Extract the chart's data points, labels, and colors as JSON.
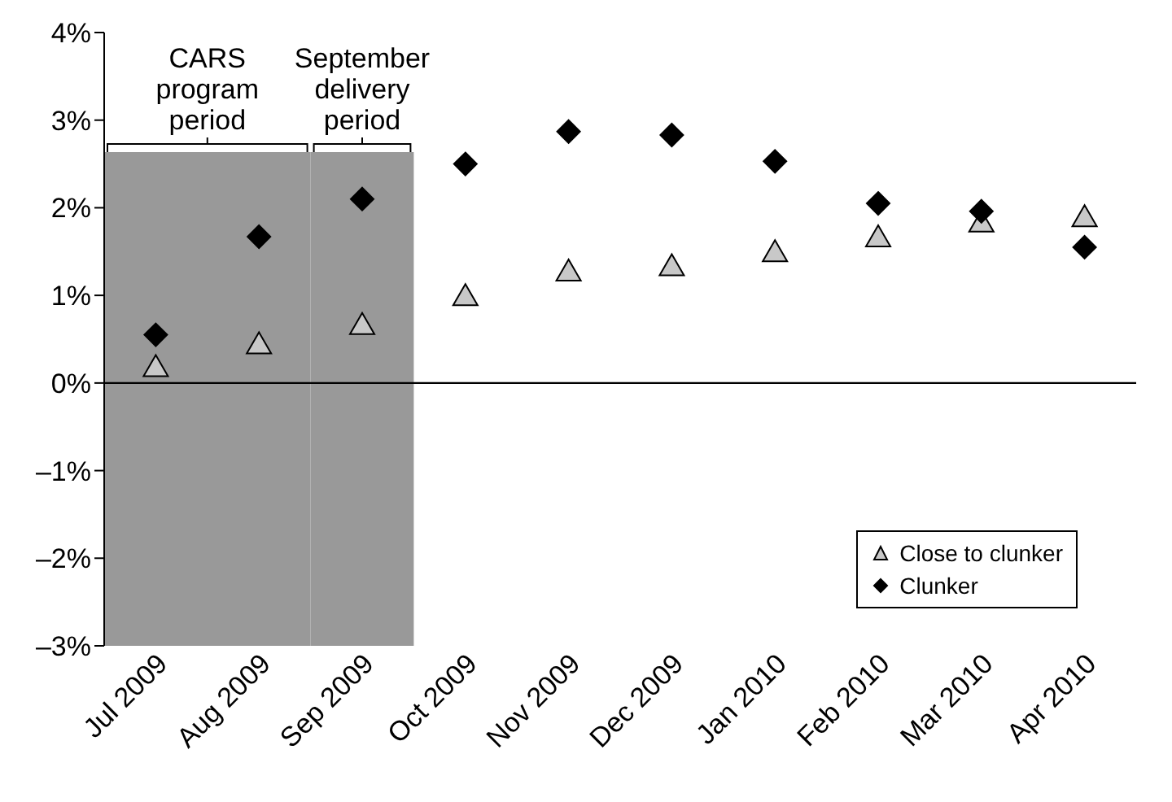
{
  "chart_data": {
    "type": "scatter",
    "categories": [
      "Jul 2009",
      "Aug 2009",
      "Sep 2009",
      "Oct 2009",
      "Nov 2009",
      "Dec 2009",
      "Jan 2010",
      "Feb 2010",
      "Mar 2010",
      "Apr 2010"
    ],
    "series": [
      {
        "name": "Close to clunker",
        "color": "#c8c8c8",
        "marker": "triangle",
        "values": [
          0.19,
          0.45,
          0.67,
          1.0,
          1.28,
          1.34,
          1.5,
          1.67,
          1.84,
          1.9
        ]
      },
      {
        "name": "Clunker",
        "color": "#000000",
        "marker": "diamond",
        "values": [
          0.55,
          1.67,
          2.1,
          2.5,
          2.87,
          2.83,
          2.53,
          2.05,
          1.96,
          1.55
        ]
      }
    ],
    "ylim": [
      -3,
      4
    ],
    "yticks": [
      {
        "value": -3,
        "label": "–3%"
      },
      {
        "value": -2,
        "label": "–2%"
      },
      {
        "value": -1,
        "label": "–1%"
      },
      {
        "value": 0,
        "label": "0%"
      },
      {
        "value": 1,
        "label": "1%"
      },
      {
        "value": 2,
        "label": "2%"
      },
      {
        "value": 3,
        "label": "3%"
      },
      {
        "value": 4,
        "label": "4%"
      }
    ],
    "bands": [
      {
        "axis": "x",
        "from": "Jul 2009",
        "to": "Aug 2009",
        "label": "CARS program period",
        "color": "#999999"
      },
      {
        "axis": "x",
        "from": "Sep 2009",
        "to": "Sep 2009",
        "label": "September delivery period",
        "color": "#999999"
      }
    ],
    "ref_lines": [
      {
        "axis": "y",
        "value": 0,
        "color": "#000000"
      }
    ],
    "grid": false,
    "legend": "bottom right"
  }
}
